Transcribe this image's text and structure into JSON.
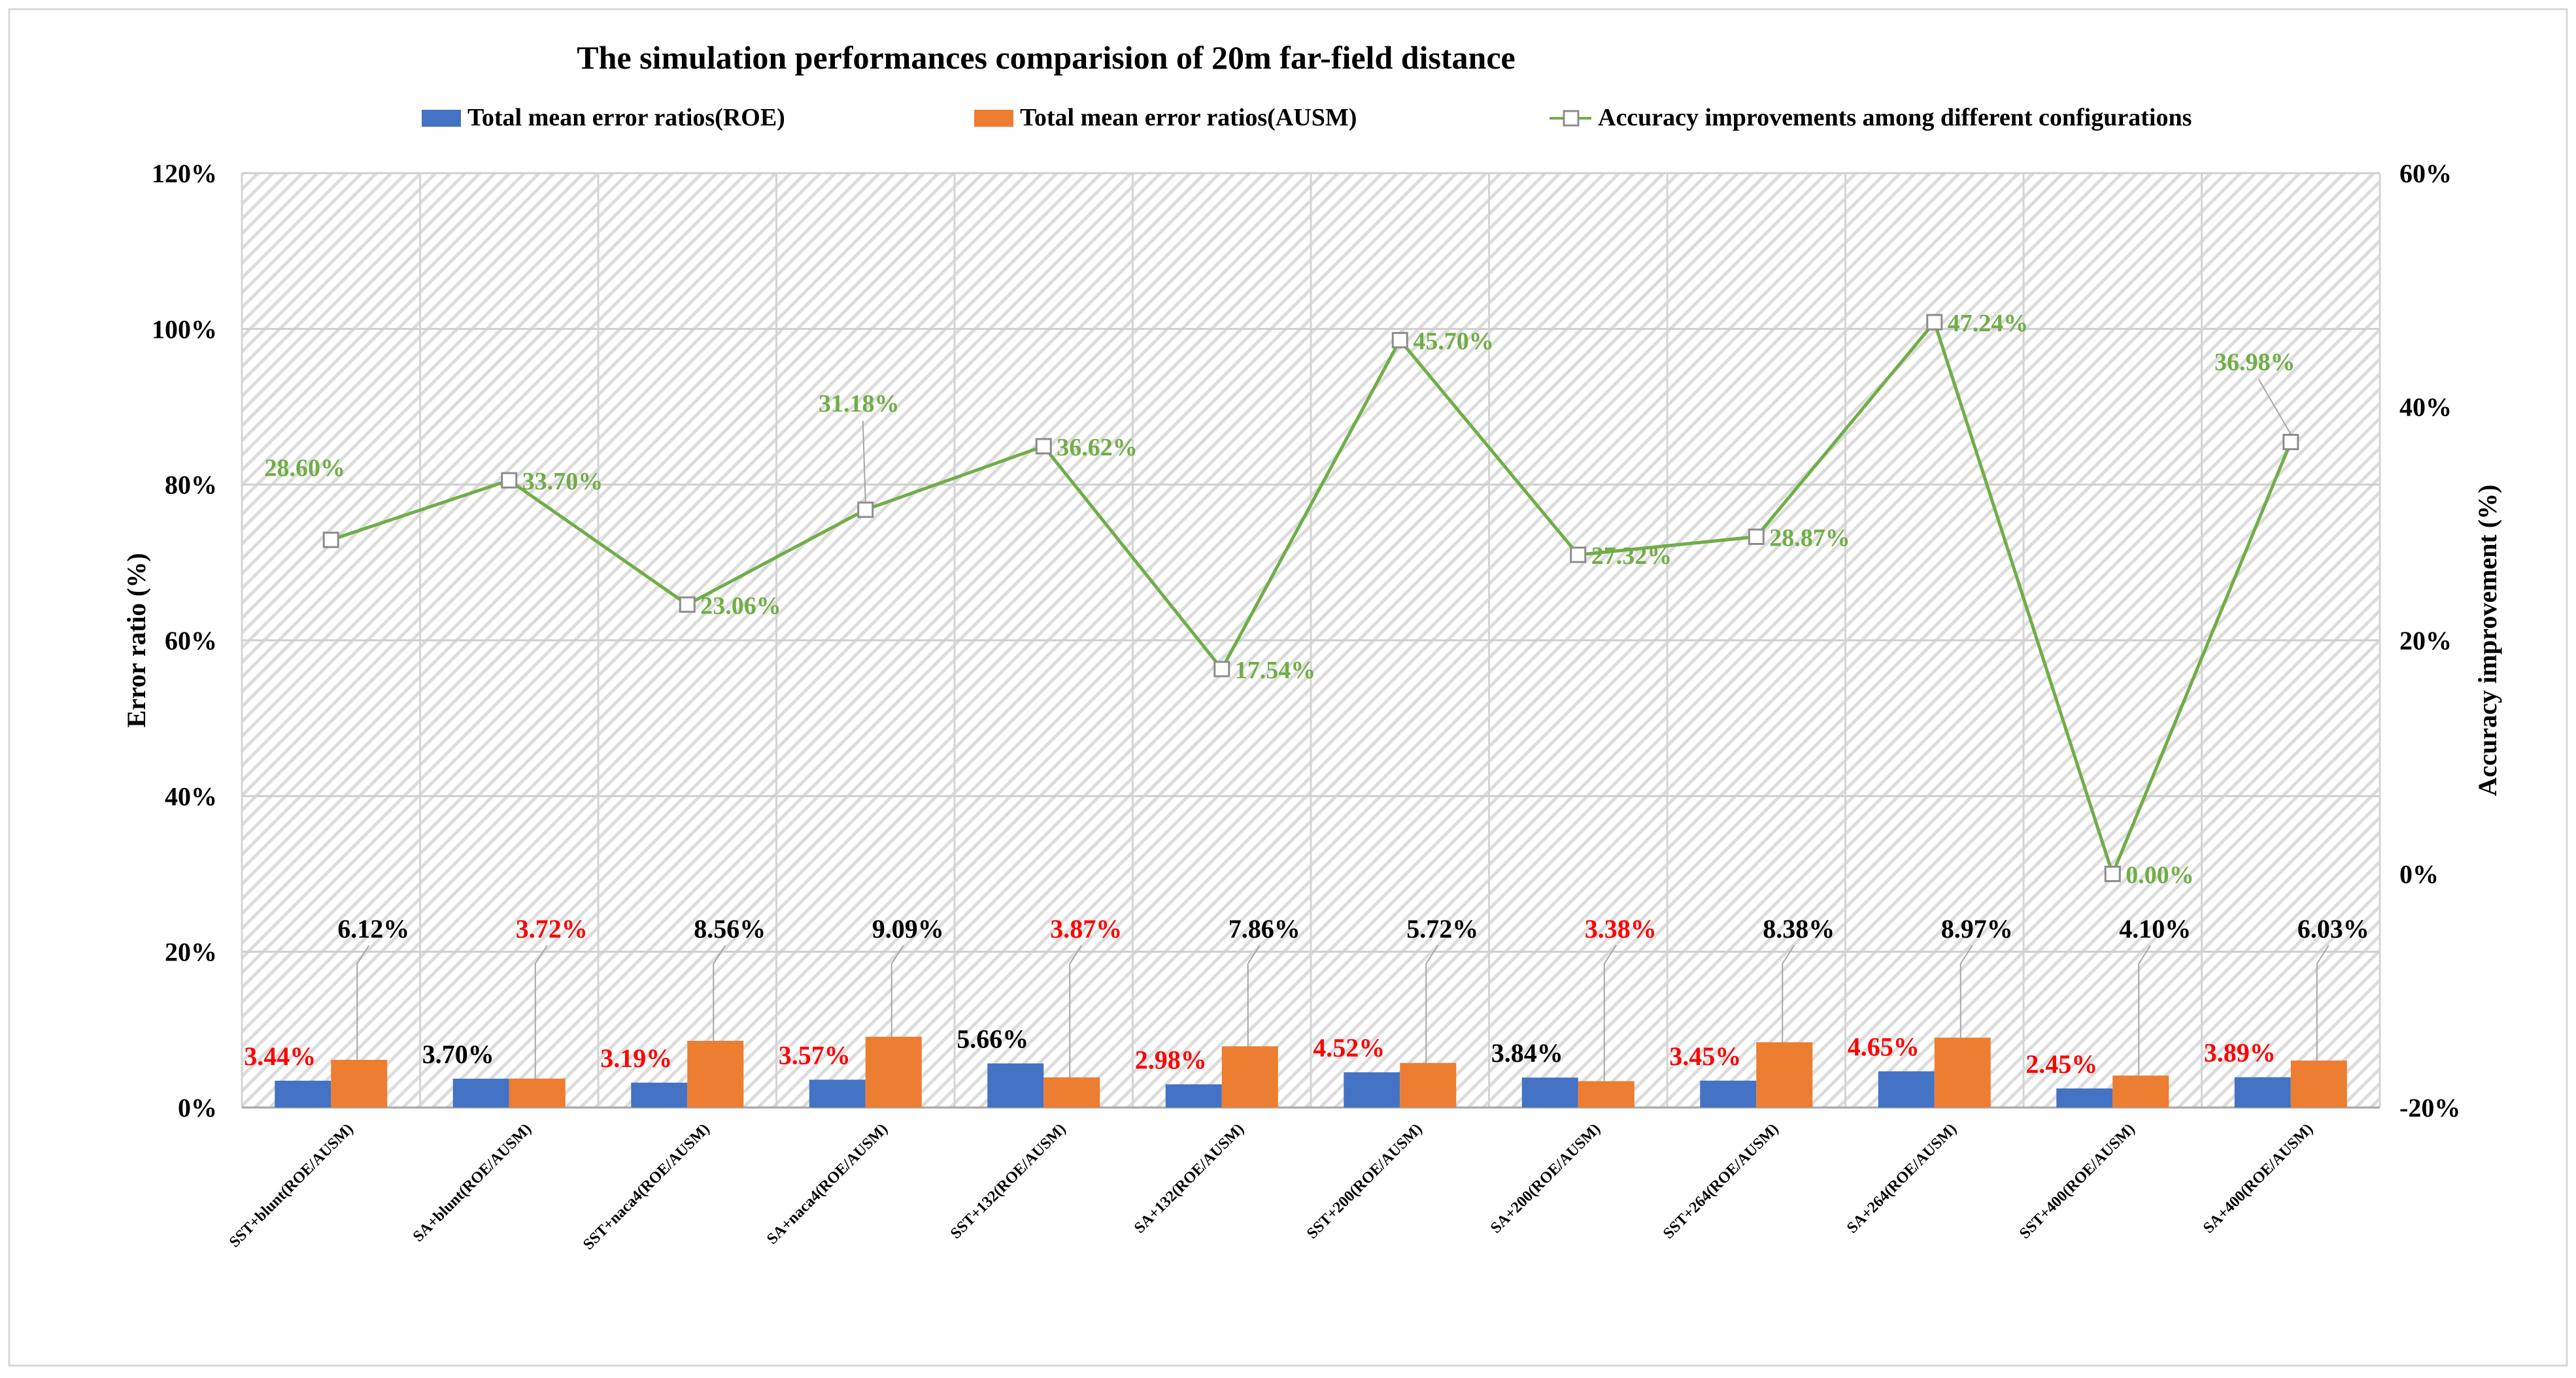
{
  "chart_data": {
    "type": "bar",
    "title": "The simulation performances comparision of 20m far-field distance",
    "categories": [
      "SST+blunt(ROE/AUSM)",
      "SA+blunt(ROE/AUSM)",
      "SST+naca4(ROE/AUSM)",
      "SA+naca4(ROE/AUSM)",
      "SST+132(ROE/AUSM)",
      "SA+132(ROE/AUSM)",
      "SST+200(ROE/AUSM)",
      "SA+200(ROE/AUSM)",
      "SST+264(ROE/AUSM)",
      "SA+264(ROE/AUSM)",
      "SST+400(ROE/AUSM)",
      "SA+400(ROE/AUSM)"
    ],
    "series": [
      {
        "name": "Total mean error ratios(ROE)",
        "type": "bar",
        "axis": "left",
        "color": "#4472C4",
        "values": [
          3.44,
          3.7,
          3.19,
          3.57,
          5.66,
          2.98,
          4.52,
          3.84,
          3.45,
          4.65,
          2.45,
          3.89
        ],
        "labels": [
          "3.44%",
          "3.70%",
          "3.19%",
          "3.57%",
          "5.66%",
          "2.98%",
          "4.52%",
          "3.84%",
          "3.45%",
          "4.65%",
          "2.45%",
          "3.89%"
        ],
        "label_colors": [
          "#FF0000",
          "#000000",
          "#FF0000",
          "#FF0000",
          "#000000",
          "#FF0000",
          "#FF0000",
          "#000000",
          "#FF0000",
          "#FF0000",
          "#FF0000",
          "#FF0000"
        ]
      },
      {
        "name": "Total mean error ratios(AUSM)",
        "type": "bar",
        "axis": "left",
        "color": "#ED7D31",
        "values": [
          6.12,
          3.72,
          8.56,
          9.09,
          3.87,
          7.86,
          5.72,
          3.38,
          8.38,
          8.97,
          4.1,
          6.03
        ],
        "labels": [
          "6.12%",
          "3.72%",
          "8.56%",
          "9.09%",
          "3.87%",
          "7.86%",
          "5.72%",
          "3.38%",
          "8.38%",
          "8.97%",
          "4.10%",
          "6.03%"
        ],
        "label_colors": [
          "#000000",
          "#FF0000",
          "#000000",
          "#000000",
          "#FF0000",
          "#000000",
          "#000000",
          "#FF0000",
          "#000000",
          "#000000",
          "#000000",
          "#000000"
        ]
      },
      {
        "name": "Accuracy improvements among different configurations",
        "type": "line",
        "axis": "right",
        "color": "#70AD47",
        "values": [
          28.6,
          33.7,
          23.06,
          31.18,
          36.62,
          17.54,
          45.7,
          27.32,
          28.87,
          47.24,
          0.0,
          36.98
        ],
        "labels": [
          "28.60%",
          "33.70%",
          "23.06%",
          "31.18%",
          "36.62%",
          "17.54%",
          "45.70%",
          "27.32%",
          "28.87%",
          "47.24%",
          "0.00%",
          "36.98%"
        ]
      }
    ],
    "ylabel": "Error ratio (%)",
    "y2label": "Accuracy improvement (%)",
    "ylim": [
      0,
      120
    ],
    "y2lim": [
      -20,
      60
    ],
    "yticks": [
      "0%",
      "20%",
      "40%",
      "60%",
      "80%",
      "100%",
      "120%"
    ],
    "y2ticks": [
      "-20%",
      "0%",
      "20%",
      "40%",
      "60%"
    ],
    "grid": true,
    "legend": "top"
  }
}
